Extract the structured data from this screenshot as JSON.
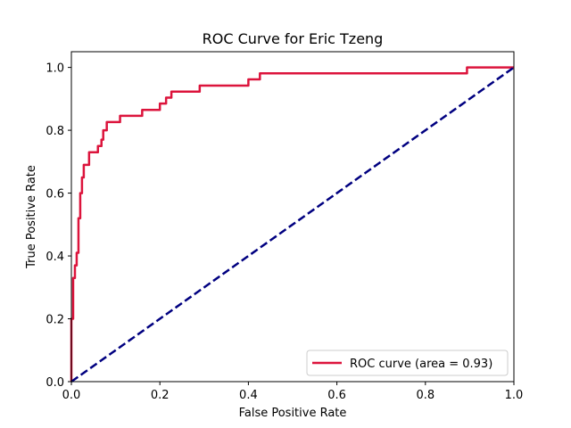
{
  "chart_data": {
    "type": "line",
    "title": "ROC Curve for Eric Tzeng",
    "xlabel": "False Positive Rate",
    "ylabel": "True Positive Rate",
    "xlim": [
      0.0,
      1.0
    ],
    "ylim": [
      0.0,
      1.05
    ],
    "xticks": [
      "0.0",
      "0.2",
      "0.4",
      "0.6",
      "0.8",
      "1.0"
    ],
    "yticks": [
      "0.0",
      "0.2",
      "0.4",
      "0.6",
      "0.8",
      "1.0"
    ],
    "grid": false,
    "legend_position": "lower-right",
    "series": [
      {
        "name": "ROC curve (area = 0.93)",
        "color": "#dc143c",
        "style": "solid",
        "x": [
          0.0,
          0.0,
          0.004,
          0.004,
          0.008,
          0.008,
          0.012,
          0.012,
          0.016,
          0.016,
          0.02,
          0.02,
          0.024,
          0.024,
          0.028,
          0.028,
          0.032,
          0.032,
          0.04,
          0.04,
          0.044,
          0.044,
          0.06,
          0.06,
          0.068,
          0.068,
          0.072,
          0.072,
          0.08,
          0.08,
          0.085,
          0.085,
          0.11,
          0.11,
          0.16,
          0.16,
          0.2,
          0.2,
          0.214,
          0.214,
          0.226,
          0.226,
          0.29,
          0.29,
          0.38,
          0.38,
          0.4,
          0.4,
          0.426,
          0.426,
          0.44,
          0.44,
          0.866,
          0.866,
          0.894,
          0.894,
          1.0
        ],
        "y": [
          0.0,
          0.2,
          0.2,
          0.33,
          0.33,
          0.37,
          0.37,
          0.41,
          0.41,
          0.52,
          0.52,
          0.6,
          0.6,
          0.65,
          0.65,
          0.69,
          0.69,
          0.69,
          0.69,
          0.73,
          0.73,
          0.73,
          0.73,
          0.75,
          0.75,
          0.77,
          0.77,
          0.8,
          0.8,
          0.826,
          0.826,
          0.826,
          0.826,
          0.846,
          0.846,
          0.865,
          0.865,
          0.885,
          0.885,
          0.904,
          0.904,
          0.923,
          0.923,
          0.942,
          0.942,
          0.942,
          0.942,
          0.962,
          0.962,
          0.981,
          0.981,
          0.981,
          0.981,
          0.981,
          0.981,
          1.0,
          1.0
        ]
      },
      {
        "name": "",
        "color": "#000080",
        "style": "dashed",
        "x": [
          0.0,
          1.0
        ],
        "y": [
          0.0,
          1.0
        ]
      }
    ]
  }
}
